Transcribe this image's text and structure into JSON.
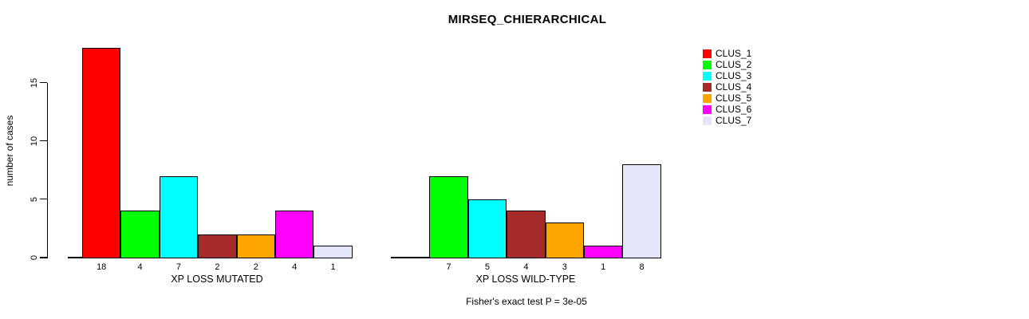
{
  "chart_data": {
    "type": "bar",
    "title": "MIRSEQ_CHIERARCHICAL",
    "ylabel": "number of cases",
    "yticks": [
      0,
      5,
      10,
      15
    ],
    "ylim": [
      0,
      18
    ],
    "grid": false,
    "legend_position": "right-outside",
    "clusters": [
      {
        "name": "CLUS_1",
        "color": "#FF0000"
      },
      {
        "name": "CLUS_2",
        "color": "#00FF00"
      },
      {
        "name": "CLUS_3",
        "color": "#00FFFF"
      },
      {
        "name": "CLUS_4",
        "color": "#A52A2A"
      },
      {
        "name": "CLUS_5",
        "color": "#FFA500"
      },
      {
        "name": "CLUS_6",
        "color": "#FF00FF"
      },
      {
        "name": "CLUS_7",
        "color": "#E6E6FA"
      }
    ],
    "groups": [
      {
        "label": "XP LOSS MUTATED",
        "values": [
          18,
          4,
          7,
          2,
          2,
          4,
          1
        ]
      },
      {
        "label": "XP LOSS WILD-TYPE",
        "values": [
          0,
          7,
          5,
          4,
          3,
          1,
          8
        ]
      }
    ],
    "bar_labels": [
      [
        "18",
        "4",
        "7",
        "2",
        "2",
        "4",
        "1"
      ],
      [
        "",
        "7",
        "5",
        "4",
        "3",
        "1",
        "8"
      ]
    ],
    "caption": "Fisher's exact test P = 3e-05"
  }
}
